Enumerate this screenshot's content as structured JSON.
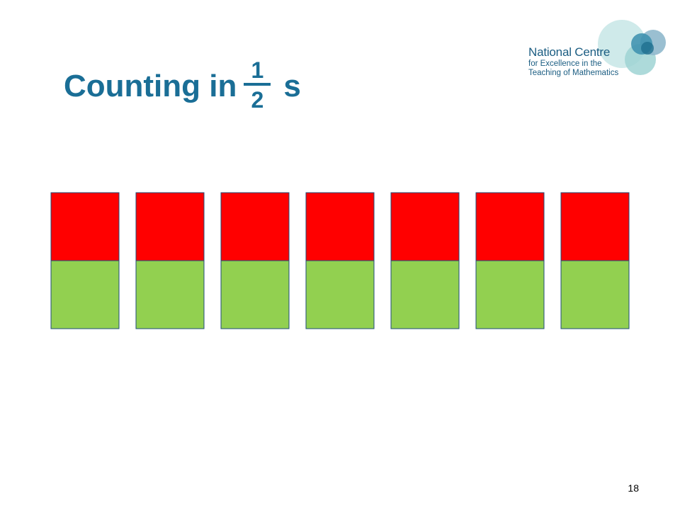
{
  "title": {
    "prefix": "Counting in",
    "numerator": "1",
    "denominator": "2",
    "suffix": "s"
  },
  "logo": {
    "line1": "National Centre",
    "line2": "for Excellence in the",
    "line3": "Teaching of Mathematics"
  },
  "colors": {
    "title": "#1a6e96",
    "top_half": "#ff0000",
    "bottom_half": "#92d050",
    "outline": "#1f4e79"
  },
  "diagram": {
    "bar_count": 7,
    "parts_per_bar": 2
  },
  "page_number": "18"
}
